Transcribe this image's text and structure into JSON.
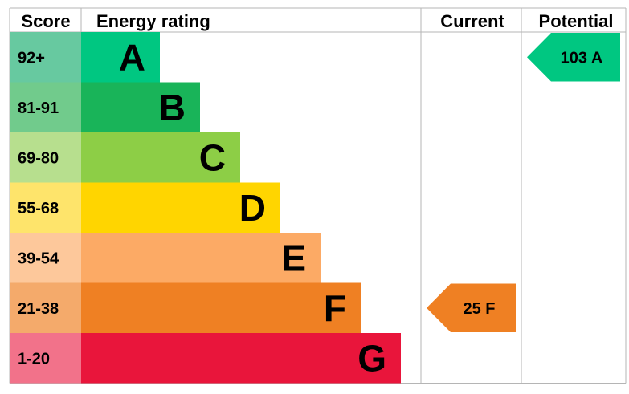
{
  "chart_data": {
    "type": "bar",
    "headers": {
      "score": "Score",
      "rating": "Energy rating",
      "current": "Current",
      "potential": "Potential"
    },
    "bands": [
      {
        "score": "92+",
        "letter": "A",
        "bar_color": "#00c781",
        "score_color": "#67c9a0"
      },
      {
        "score": "81-91",
        "letter": "B",
        "bar_color": "#19b459",
        "score_color": "#71cb8c"
      },
      {
        "score": "69-80",
        "letter": "C",
        "bar_color": "#8dce46",
        "score_color": "#b7df8e"
      },
      {
        "score": "55-68",
        "letter": "D",
        "bar_color": "#ffd500",
        "score_color": "#fee46b"
      },
      {
        "score": "39-54",
        "letter": "E",
        "bar_color": "#fcaa65",
        "score_color": "#fdc89b"
      },
      {
        "score": "21-38",
        "letter": "F",
        "bar_color": "#ef8023",
        "score_color": "#f4aa6b"
      },
      {
        "score": "1-20",
        "letter": "G",
        "bar_color": "#e9153b",
        "score_color": "#f2728a"
      }
    ],
    "current": {
      "value": 25,
      "letter": "F",
      "label": "25 F",
      "color": "#ef8023"
    },
    "potential": {
      "value": 103,
      "letter": "A",
      "label": "103 A",
      "color": "#00c781"
    }
  }
}
